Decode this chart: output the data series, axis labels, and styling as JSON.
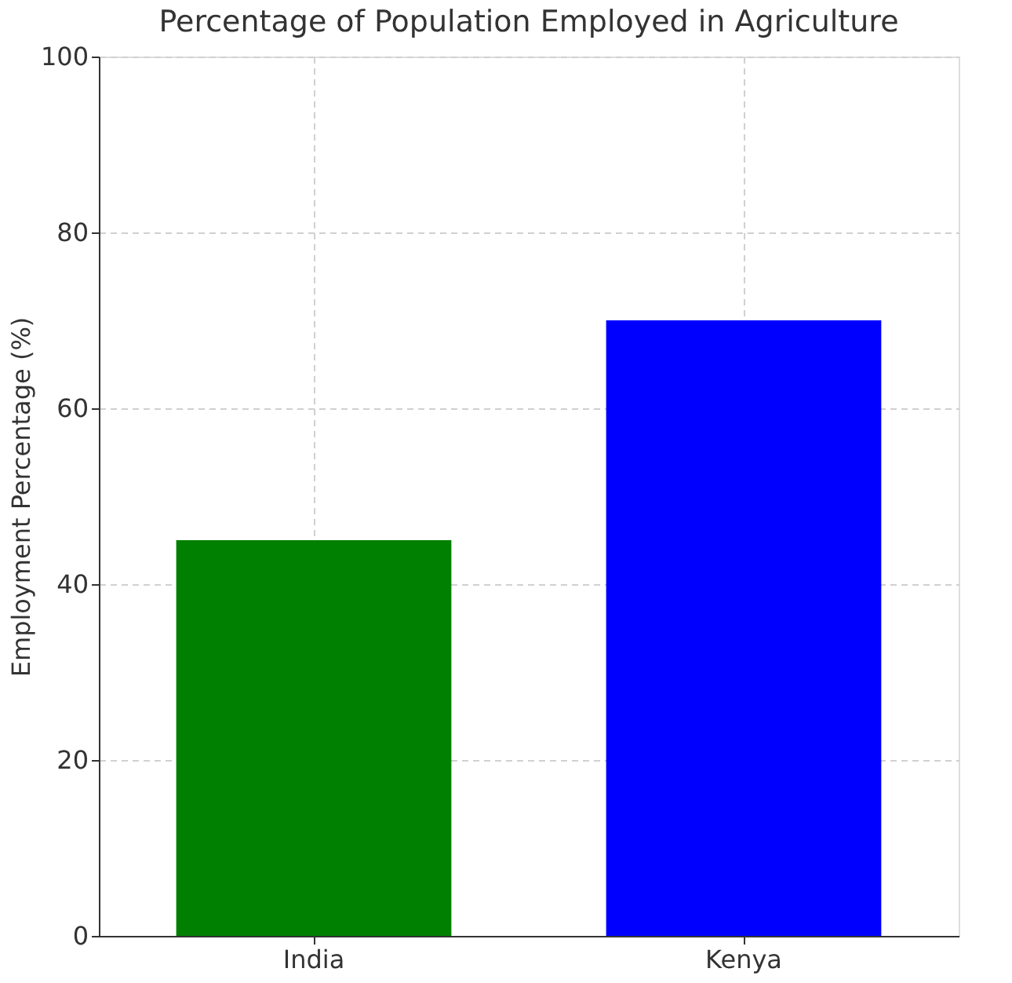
{
  "chart_data": {
    "type": "bar",
    "title": "Percentage of Population Employed in Agriculture",
    "ylabel": "Employment Percentage (%)",
    "categories": [
      "India",
      "Kenya"
    ],
    "values": [
      45,
      70
    ],
    "colors": [
      "#008000",
      "#0000ff"
    ],
    "ylim": [
      0,
      100
    ],
    "yticks": [
      0,
      20,
      40,
      60,
      80,
      100
    ],
    "grid": true,
    "line_style": "dashed"
  }
}
